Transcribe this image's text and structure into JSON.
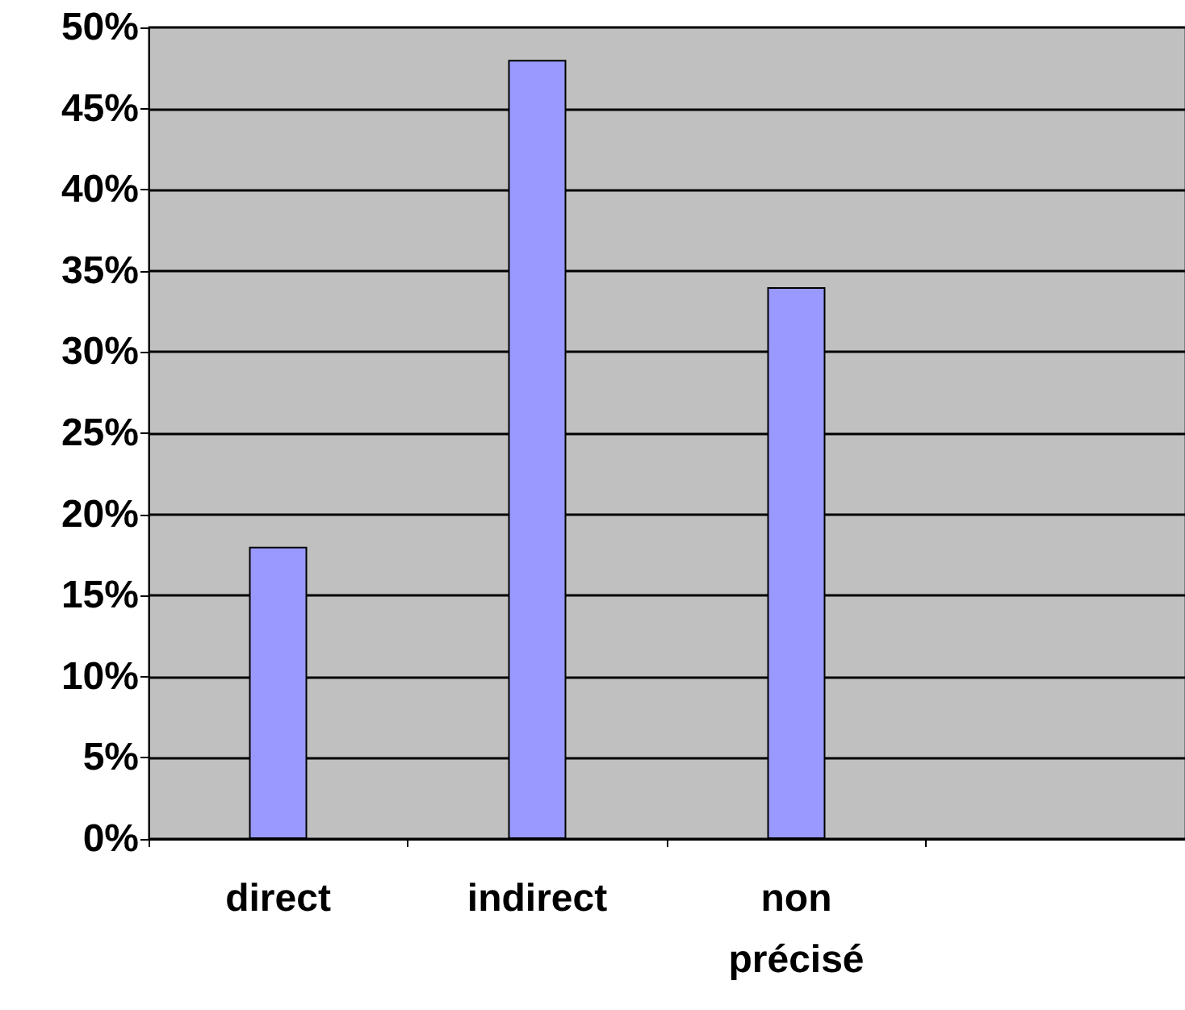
{
  "chart_data": {
    "type": "bar",
    "categories": [
      "direct",
      "indirect",
      "non précisé",
      null
    ],
    "values": [
      18,
      48,
      34,
      null
    ],
    "color": "#9999ff",
    "ylim": [
      0,
      50
    ],
    "yticks": [
      {
        "value": 0,
        "label": "0%"
      },
      {
        "value": 5,
        "label": "5%"
      },
      {
        "value": 10,
        "label": "10%"
      },
      {
        "value": 15,
        "label": "15%"
      },
      {
        "value": 20,
        "label": "20%"
      },
      {
        "value": 25,
        "label": "25%"
      },
      {
        "value": 30,
        "label": "30%"
      },
      {
        "value": 35,
        "label": "35%"
      },
      {
        "value": 40,
        "label": "40%"
      },
      {
        "value": 45,
        "label": "45%"
      },
      {
        "value": 50,
        "label": "50%"
      }
    ],
    "grid": "y"
  }
}
